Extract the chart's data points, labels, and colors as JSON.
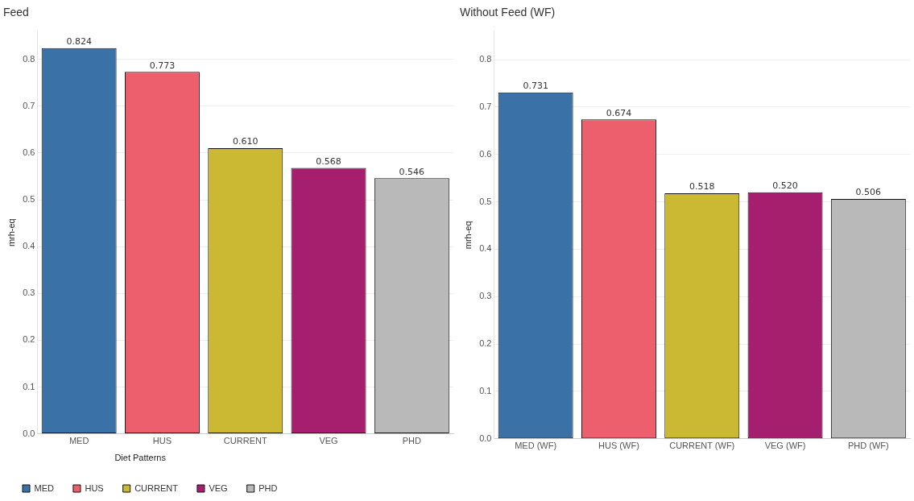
{
  "chart_data": [
    {
      "type": "bar",
      "title": "Feed",
      "ylabel": "mrh-eq",
      "categories": [
        "MED",
        "HUS",
        "CURRENT",
        "VEG",
        "PHD"
      ],
      "series": [
        {
          "name": "MED",
          "color": "#3a72a8",
          "values": [
            0.824,
            null,
            null,
            null,
            null
          ],
          "value_labels": [
            "0.824",
            null,
            null,
            null,
            null
          ]
        },
        {
          "name": "HUS",
          "color": "#ee5f6e",
          "values": [
            null,
            0.773,
            null,
            null,
            null
          ],
          "value_labels": [
            null,
            "0.773",
            null,
            null,
            null
          ]
        },
        {
          "name": "CURRENT",
          "color": "#cbb933",
          "values": [
            null,
            null,
            0.61,
            null,
            null
          ],
          "value_labels": [
            null,
            null,
            "0.610",
            null,
            null
          ]
        },
        {
          "name": "VEG",
          "color": "#a61e6e",
          "values": [
            null,
            null,
            null,
            0.568,
            null
          ],
          "value_labels": [
            null,
            null,
            null,
            "0.568",
            null
          ]
        },
        {
          "name": "PHD",
          "color": "#b9b9b9",
          "values": [
            null,
            null,
            null,
            null,
            0.546
          ],
          "value_labels": [
            null,
            null,
            null,
            null,
            "0.546"
          ]
        }
      ],
      "ylim": [
        0,
        0.86
      ],
      "yticks": [
        {
          "value": 0,
          "label": "0.0"
        },
        0.1,
        0.2,
        0.3,
        0.4,
        0.5,
        0.6,
        0.7,
        0.8
      ],
      "grid": "y",
      "legend": "bottom left",
      "legend_title": "Diet Patterns"
    },
    {
      "type": "bar",
      "title": "Without Feed (WF)",
      "ylabel": "mrh-eq",
      "categories": [
        "MED (WF)",
        "HUS (WF)",
        "CURRENT (WF)",
        "VEG (WF)",
        "PHD (WF)"
      ],
      "values": [
        0.731,
        0.674,
        0.518,
        0.52,
        0.506
      ],
      "value_labels": [
        "0.731",
        "0.674",
        "0.518",
        "0.520",
        "0.506"
      ],
      "colors": [
        "#3a72a8",
        "#ee5f6e",
        "#cbb933",
        "#a61e6e",
        "#b9b9b9"
      ],
      "ylim": [
        0,
        0.86
      ],
      "yticks": [
        {
          "value": 0,
          "label": "0.0"
        },
        0.1,
        0.2,
        0.3,
        0.4,
        0.5,
        0.6,
        0.7,
        0.8
      ],
      "grid": "y"
    }
  ]
}
